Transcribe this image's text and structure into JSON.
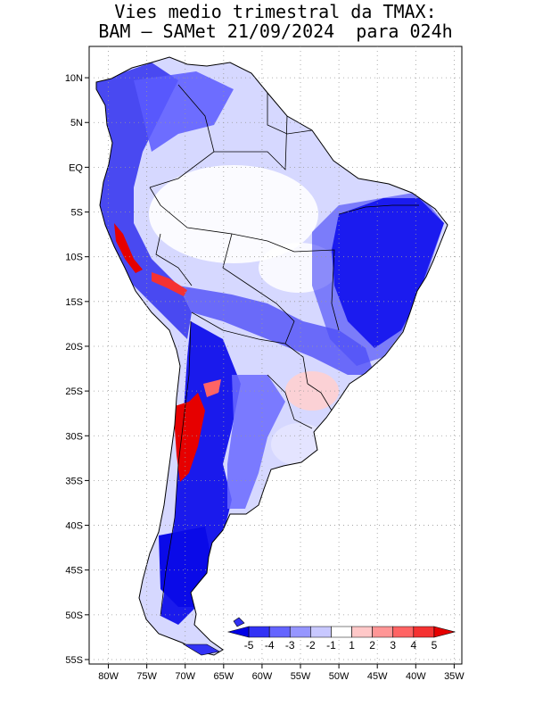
{
  "title": {
    "line1": "Vies medio trimestral da TMAX:",
    "line2": "BAM – SAMet 21/09/2024  para 024h"
  },
  "axes": {
    "lon_ticks": [
      "80W",
      "75W",
      "70W",
      "65W",
      "60W",
      "55W",
      "50W",
      "45W",
      "40W",
      "35W"
    ],
    "lon_values": [
      -80,
      -75,
      -70,
      -65,
      -60,
      -55,
      -50,
      -45,
      -40,
      -35
    ],
    "lat_ticks": [
      "10N",
      "5N",
      "EQ",
      "5S",
      "10S",
      "15S",
      "20S",
      "25S",
      "30S",
      "35S",
      "40S",
      "45S",
      "50S",
      "55S"
    ],
    "lat_values": [
      10,
      5,
      0,
      -5,
      -10,
      -15,
      -20,
      -25,
      -30,
      -35,
      -40,
      -45,
      -50,
      -55
    ],
    "lon_range": [
      -82.5,
      -34
    ],
    "lat_range": [
      -55.5,
      13.5
    ],
    "grid": "dotted"
  },
  "colorbar": {
    "labels": [
      "-5",
      "-4",
      "-3",
      "-2",
      "-1",
      "1",
      "2",
      "3",
      "4",
      "5"
    ],
    "colors": [
      "#0000e6",
      "#3232f5",
      "#6464ff",
      "#9696ff",
      "#c8c8ff",
      "#ffffff",
      "#ffc8c8",
      "#ff9696",
      "#ff6464",
      "#f53232",
      "#e60000"
    ],
    "placement": "bottom-right"
  },
  "colors": {
    "ocean": "#ffffff",
    "land_base": "#d2d4ff",
    "coast": "#000000",
    "grid": "#999999"
  }
}
